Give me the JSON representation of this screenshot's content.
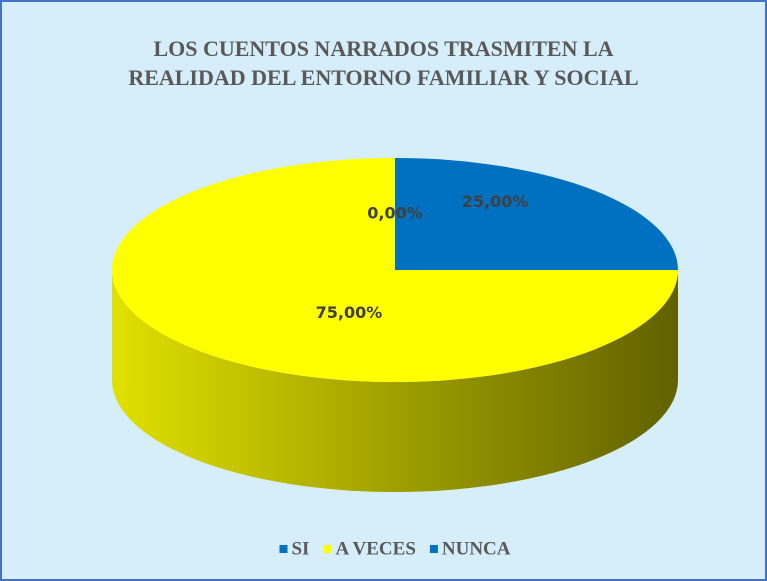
{
  "chart_data": {
    "type": "pie3d",
    "title": "LOS CUENTOS NARRADOS TRASMITEN LA REALIDAD DEL ENTORNO FAMILIAR Y SOCIAL",
    "categories": [
      "SI",
      "A VECES",
      "NUNCA"
    ],
    "values": [
      25,
      75,
      0
    ],
    "value_labels": [
      "25,00%",
      "75,00%",
      "0,00%"
    ],
    "colors": [
      "#0070c0",
      "#ffff00",
      "#0070c0"
    ],
    "legend": "bottom"
  }
}
